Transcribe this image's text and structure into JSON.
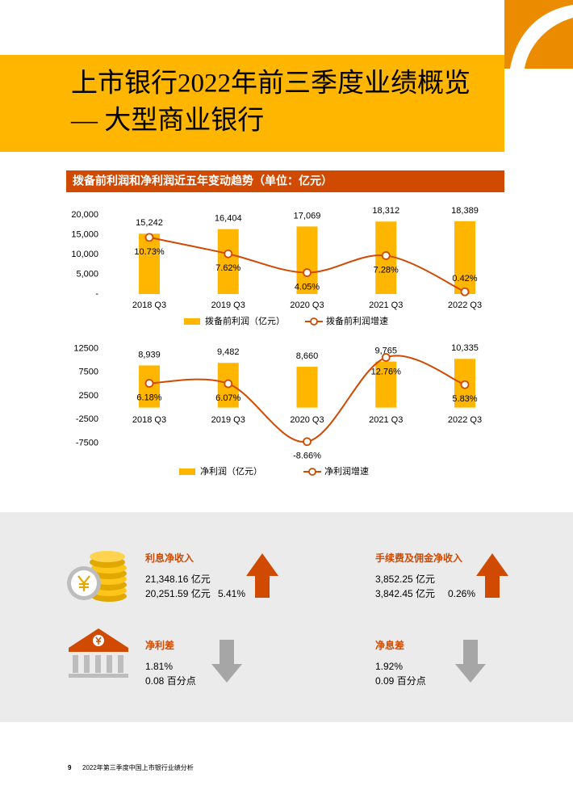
{
  "header": {
    "title_lines": [
      "上市银行2022年前三季度业绩概览",
      "— 大型商业银行"
    ]
  },
  "section_title": "拨备前利润和净利润近五年变动趋势（单位：亿元）",
  "chart_data": [
    {
      "type": "bar",
      "categories": [
        "2018 Q3",
        "2019 Q3",
        "2020 Q3",
        "2021 Q3",
        "2022 Q3"
      ],
      "series": [
        {
          "name": "拨备前利润（亿元）",
          "type": "bar",
          "color": "#FFB600",
          "values": [
            15242,
            16404,
            17069,
            18312,
            18389
          ],
          "value_labels": [
            "15,242",
            "16,404",
            "17,069",
            "18,312",
            "18,389"
          ]
        },
        {
          "name": "拨备前利润增速",
          "type": "line",
          "axis": "y2",
          "color": "#D04A02",
          "values": [
            10.73,
            7.62,
            4.05,
            7.28,
            0.42
          ],
          "value_labels": [
            "10.73%",
            "7.62%",
            "4.05%",
            "7.28%",
            "0.42%"
          ]
        }
      ],
      "ylim": [
        0,
        20000
      ],
      "yticks": [
        {
          "value": 0,
          "label": "-"
        },
        {
          "value": 5000,
          "label": "5,000"
        },
        {
          "value": 10000,
          "label": "10,000"
        },
        {
          "value": 15000,
          "label": "15,000"
        },
        {
          "value": 20000,
          "label": "20,000"
        }
      ],
      "y2lim": [
        0,
        15
      ],
      "grid": false,
      "legend": "bottom"
    },
    {
      "type": "bar",
      "categories": [
        "2018 Q3",
        "2019 Q3",
        "2020 Q3",
        "2021 Q3",
        "2022 Q3"
      ],
      "series": [
        {
          "name": "净利润（亿元）",
          "type": "bar",
          "color": "#FFB600",
          "values": [
            8939,
            9482,
            8660,
            9765,
            10335
          ],
          "value_labels": [
            "8,939",
            "9,482",
            "8,660",
            "9,765",
            "10,335"
          ]
        },
        {
          "name": "净利润增速",
          "type": "line",
          "axis": "y2",
          "color": "#D04A02",
          "values": [
            6.18,
            6.07,
            -8.66,
            12.76,
            5.83
          ],
          "value_labels": [
            "6.18%",
            "6.07%",
            "-8.66%",
            "12.76%",
            "5.83%"
          ]
        }
      ],
      "ylim": [
        -10000,
        15000
      ],
      "yticks": [
        12500,
        7500,
        2500,
        -2500,
        -7500
      ],
      "y2lim": [
        -12,
        18
      ],
      "grid": false,
      "legend": "bottom"
    }
  ],
  "stats": [
    {
      "label": "利息净收入",
      "lines": [
        [
          "21,348.16 亿元"
        ],
        [
          "20,251.59 亿元",
          "5.41%"
        ]
      ]
    },
    {
      "label": "手续费及佣金净收入",
      "lines": [
        [
          "3,852.25 亿元"
        ],
        [
          "3,842.45 亿元",
          "0.26%"
        ]
      ]
    },
    {
      "label": "净利差",
      "lines": [
        [
          "1.81%"
        ],
        [
          "0.08 百分点"
        ]
      ]
    },
    {
      "label": "净息差",
      "lines": [
        [
          "1.92%"
        ],
        [
          "0.09 百分点"
        ]
      ]
    }
  ],
  "footer": {
    "page": "9",
    "text": "2022年第三季度中国上市银行业绩分析"
  }
}
